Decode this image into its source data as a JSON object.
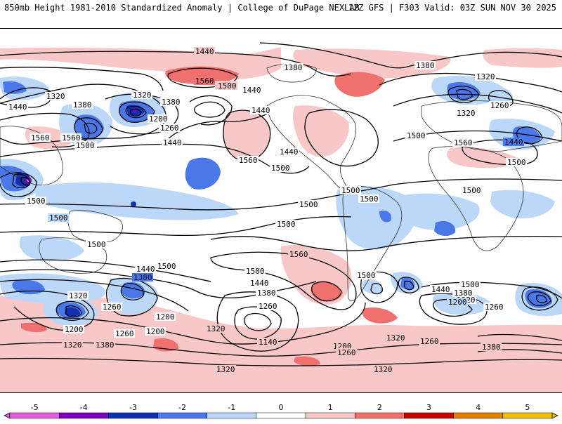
{
  "header": {
    "title": "850mb Height 1981-2010 Standardized Anomaly | College of DuPage NEXLAB",
    "run_info": "12Z GFS | F303 Valid: 03Z SUN NOV 30 2025"
  },
  "colors": {
    "anom_neg5": "#e060e0",
    "anom_neg4": "#8000c0",
    "anom_neg3": "#1030b0",
    "anom_neg2": "#4a78e8",
    "anom_neg1": "#bcd8f8",
    "anom_pos1": "#f8c8c8",
    "anom_pos2": "#f07070",
    "anom_pos3": "#c80000",
    "anom_pos4": "#e08000",
    "anom_pos5": "#f0c000",
    "contour": "#000000",
    "coastline": "#303030"
  },
  "contour_labels": [
    "1440",
    "1380",
    "1560",
    "1500",
    "1440",
    "1320",
    "1380",
    "1260",
    "1440",
    "1500",
    "1320",
    "1440",
    "1380",
    "1320",
    "1260",
    "1500",
    "1560",
    "1500",
    "1440",
    "1440",
    "1500",
    "1200",
    "1500",
    "1500",
    "1560",
    "1560",
    "1500",
    "1500",
    "1500",
    "1500",
    "1500",
    "1500",
    "1500",
    "1500",
    "1440",
    "1380",
    "1320",
    "1260",
    "1200",
    "1500",
    "1560",
    "1440",
    "1380",
    "1260",
    "1320",
    "1140",
    "1200",
    "1260",
    "1320",
    "1380",
    "1200",
    "1260",
    "1320",
    "1320",
    "1500",
    "1440",
    "1380",
    "1320",
    "1200",
    "1260",
    "1260",
    "1380",
    "1320",
    "1500",
    "1440",
    "1380",
    "1560",
    "1500",
    "1200",
    "1320"
  ],
  "colorbar": {
    "labels": [
      "-5",
      "-4",
      "-3",
      "-2",
      "-1",
      "0",
      "1",
      "2",
      "3",
      "4",
      "5"
    ],
    "min": -5.5,
    "max": 5.5
  }
}
